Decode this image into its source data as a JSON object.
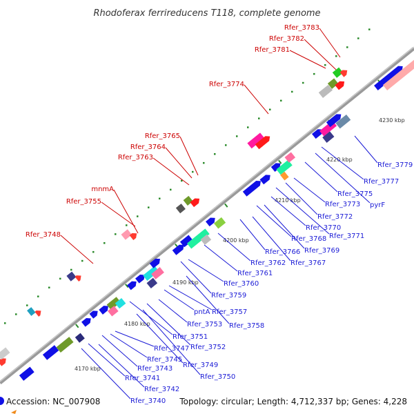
{
  "title": "Rhodoferax ferrireducens T118, complete genome",
  "footer": {
    "accession": "Accession: NC_007908",
    "summary": "Topology: circular; Length: 4,712,337 bp; Genes: 4,228"
  },
  "scale_labels": [
    "4170 kbp",
    "4180 kbp",
    "4190 kbp",
    "4200 kbp",
    "4210 kbp",
    "4220 kbp",
    "4230 kbp"
  ],
  "forward_labels": [
    "Rfer_3740",
    "Rfer_3741",
    "Rfer_3742",
    "Rfer_3743",
    "Rfer_3745",
    "Rfer_3747",
    "Rfer_3749",
    "Rfer_3750",
    "Rfer_3751",
    "Rfer_3752",
    "Rfer_3753",
    "pntA",
    "Rfer_3757",
    "Rfer_3758",
    "Rfer_3759",
    "Rfer_3760",
    "Rfer_3761",
    "Rfer_3762",
    "Rfer_3766",
    "Rfer_3767",
    "Rfer_3768",
    "Rfer_3769",
    "Rfer_3770",
    "Rfer_3771",
    "Rfer_3772",
    "Rfer_3773",
    "Rfer_3775",
    "pyrF",
    "Rfer_3777",
    "Rfer_3779"
  ],
  "reverse_labels": [
    "Rfer_3748",
    "Rfer_3755",
    "mnmA",
    "Rfer_3763",
    "Rfer_3764",
    "Rfer_3765",
    "Rfer_3774",
    "Rfer_3781",
    "Rfer_3782",
    "Rfer_3783"
  ],
  "colors": {
    "backbone": "#999999",
    "forward_gene": "#1010e6",
    "reverse_gene": "#e60000",
    "forward_label": "#1a1ad6",
    "reverse_label": "#cc0000",
    "gc_dot": "#2a8a2a"
  }
}
